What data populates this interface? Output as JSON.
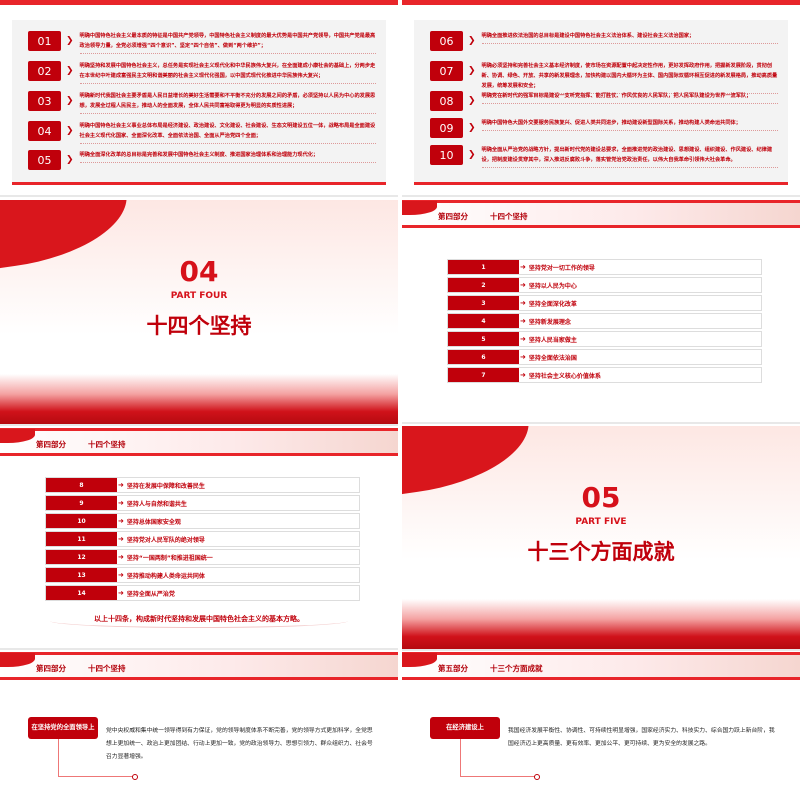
{
  "slide1": {
    "items": [
      {
        "num": "01",
        "text": "明确中国特色社会主义最本质的特征是中国共产党领导，中国特色社会主义制度的最大优势是中国共产党领导，中国共产党是最高政治领导力量，全党必须增强“四个意识”、坚定“四个自信”、做到“两个维护”；"
      },
      {
        "num": "02",
        "text": "明确坚持和发展中国特色社会主义，总任务是实现社会主义现代化和中华民族伟大复兴，在全面建成小康社会的基础上，分两步走在本世纪中叶建成富强民主文明和谐美丽的社会主义现代化强国，以中国式现代化推进中华民族伟大复兴；"
      },
      {
        "num": "03",
        "text": "明确新时代我国社会主要矛盾是人民日益增长的美好生活需要和不平衡不充分的发展之间的矛盾，必须坚持以人民为中心的发展思想，发展全过程人民民主，推动人的全面发展，全体人民共同富裕取得更为明显的实质性进展；"
      },
      {
        "num": "04",
        "text": "明确中国特色社会主义事业总体布局是经济建设、政治建设、文化建设、社会建设、生态文明建设五位一体，战略布局是全面建设社会主义现代化国家、全面深化改革、全面依法治国、全面从严治党四个全面；"
      },
      {
        "num": "05",
        "text": "明确全面深化改革的总目标是完善和发展中国特色社会主义制度、推进国家治理体系和治理能力现代化；"
      }
    ]
  },
  "slide2": {
    "items": [
      {
        "num": "06",
        "text": "明确全面推进依法治国的总目标是建设中国特色社会主义法治体系、建设社会主义法治国家；"
      },
      {
        "num": "07",
        "text": "明确必须坚持和完善社会主义基本经济制度，使市场在资源配置中起决定性作用，更好发挥政府作用，把握新发展阶段，贯彻创新、协调、绿色、开放、共享的新发展理念，加快构建以国内大循环为主体、国内国际双循环相互促进的新发展格局，推动高质量发展，统筹发展和安全；"
      },
      {
        "num": "08",
        "text": "明确党在新时代的强军目标是建设一支听党指挥、能打胜仗、作风优良的人民军队，把人民军队建设为世界一流军队；"
      },
      {
        "num": "09",
        "text": "明确中国特色大国外交要服务民族复兴、促进人类共同进步，推动建设新型国际关系，推动构建人类命运共同体；"
      },
      {
        "num": "10",
        "text": "明确全面从严治党的战略方针，提出新时代党的建设总要求，全面推进党的政治建设、思想建设、组织建设、作风建设、纪律建设，把制度建设贯穿其中，深入推进反腐败斗争，落实管党治党政治责任，以伟大自我革命引领伟大社会革命。"
      }
    ]
  },
  "cover4": {
    "num": "04",
    "part": "PART FOUR",
    "title": "十四个坚持"
  },
  "cover5": {
    "num": "05",
    "part": "PART FIVE",
    "title": "十三个方面成就"
  },
  "header4": {
    "section": "第四部分",
    "title": "十四个坚持"
  },
  "header5": {
    "section": "第五部分",
    "title": "十三个方面成就"
  },
  "list1": [
    {
      "num": "1",
      "text": "坚持党对一切工作的领导"
    },
    {
      "num": "2",
      "text": "坚持以人民为中心"
    },
    {
      "num": "3",
      "text": "坚持全面深化改革"
    },
    {
      "num": "4",
      "text": "坚持新发展理念"
    },
    {
      "num": "5",
      "text": "坚持人民当家做主"
    },
    {
      "num": "6",
      "text": "坚持全面依法治国"
    },
    {
      "num": "7",
      "text": "坚持社会主义核心价值体系"
    }
  ],
  "list2": [
    {
      "num": "8",
      "text": "坚持在发展中保障和改善民生"
    },
    {
      "num": "9",
      "text": "坚持人与自然和谐共生"
    },
    {
      "num": "10",
      "text": "坚持总体国家安全观"
    },
    {
      "num": "11",
      "text": "坚持党对人民军队的绝对领导"
    },
    {
      "num": "12",
      "text": "坚持“一国两制”和推进祖国统一"
    },
    {
      "num": "13",
      "text": "坚持推动构建人类命运共同体"
    },
    {
      "num": "14",
      "text": "坚持全面从严治党"
    }
  ],
  "list2_summary": "以上十四条，构成新时代坚持和发展中国特色社会主义的基本方略。",
  "detail4": {
    "tag": "在坚持党的全面领导上",
    "text": "党中央权威和集中统一领导得到有力保证，党的领导制度体系不断完善，党的领导方式更加科学，全党思想上更加统一、政治上更加团结、行动上更加一致，党的政治领导力、思想引领力、群众组织力、社会号召力显著增强。"
  },
  "detail5": {
    "tag": "在经济建设上",
    "text": "我国经济发展平衡性、协调性、可持续性明显增强，国家经济实力、科技实力、综合国力跃上新台阶，我国经济迈上更高质量、更有效率、更加公平、更可持续、更为安全的发展之路。"
  },
  "colors": {
    "primary": "#c0000b",
    "accent": "#e8252a"
  }
}
